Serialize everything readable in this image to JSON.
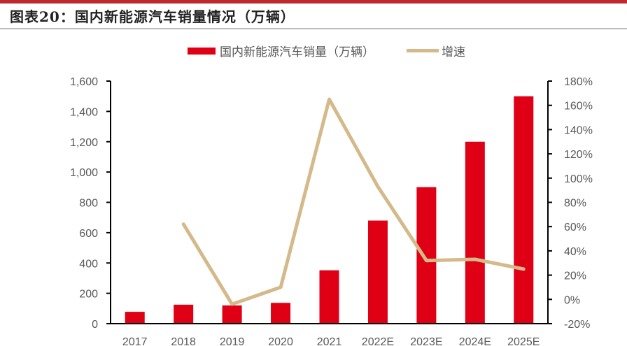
{
  "title": "图表20：国内新能源汽车销量情况（万辆）",
  "legend": {
    "bar_label": "国内新能源汽车销量（万辆）",
    "line_label": "增速"
  },
  "colors": {
    "bar": "#e00015",
    "line": "#d4b98a",
    "top_rule": "#c0282d",
    "axis": "#000000"
  },
  "chart_data": {
    "type": "bar",
    "title": "图表20：国内新能源汽车销量情况（万辆）",
    "categories": [
      "2017",
      "2018",
      "2019",
      "2020",
      "2021",
      "2022E",
      "2023E",
      "2024E",
      "2025E"
    ],
    "series": [
      {
        "name": "国内新能源汽车销量（万辆）",
        "type": "bar",
        "axis": "left",
        "values": [
          78,
          125,
          120,
          137,
          352,
          680,
          900,
          1200,
          1500
        ]
      },
      {
        "name": "增速",
        "type": "line",
        "axis": "right",
        "values": [
          null,
          62,
          -4,
          10,
          165,
          93,
          32,
          33,
          25
        ],
        "unit": "%"
      }
    ],
    "left_axis": {
      "ylim": [
        0,
        1600
      ],
      "ticks": [
        "0",
        "200",
        "400",
        "600",
        "800",
        "1,000",
        "1,200",
        "1,400",
        "1,600"
      ]
    },
    "right_axis": {
      "ylim": [
        -20,
        180
      ],
      "ticks": [
        "-20%",
        "0%",
        "20%",
        "40%",
        "60%",
        "80%",
        "100%",
        "120%",
        "140%",
        "160%",
        "180%"
      ]
    },
    "xlabel": "",
    "ylabel": "",
    "grid": false,
    "legend_position": "top"
  }
}
